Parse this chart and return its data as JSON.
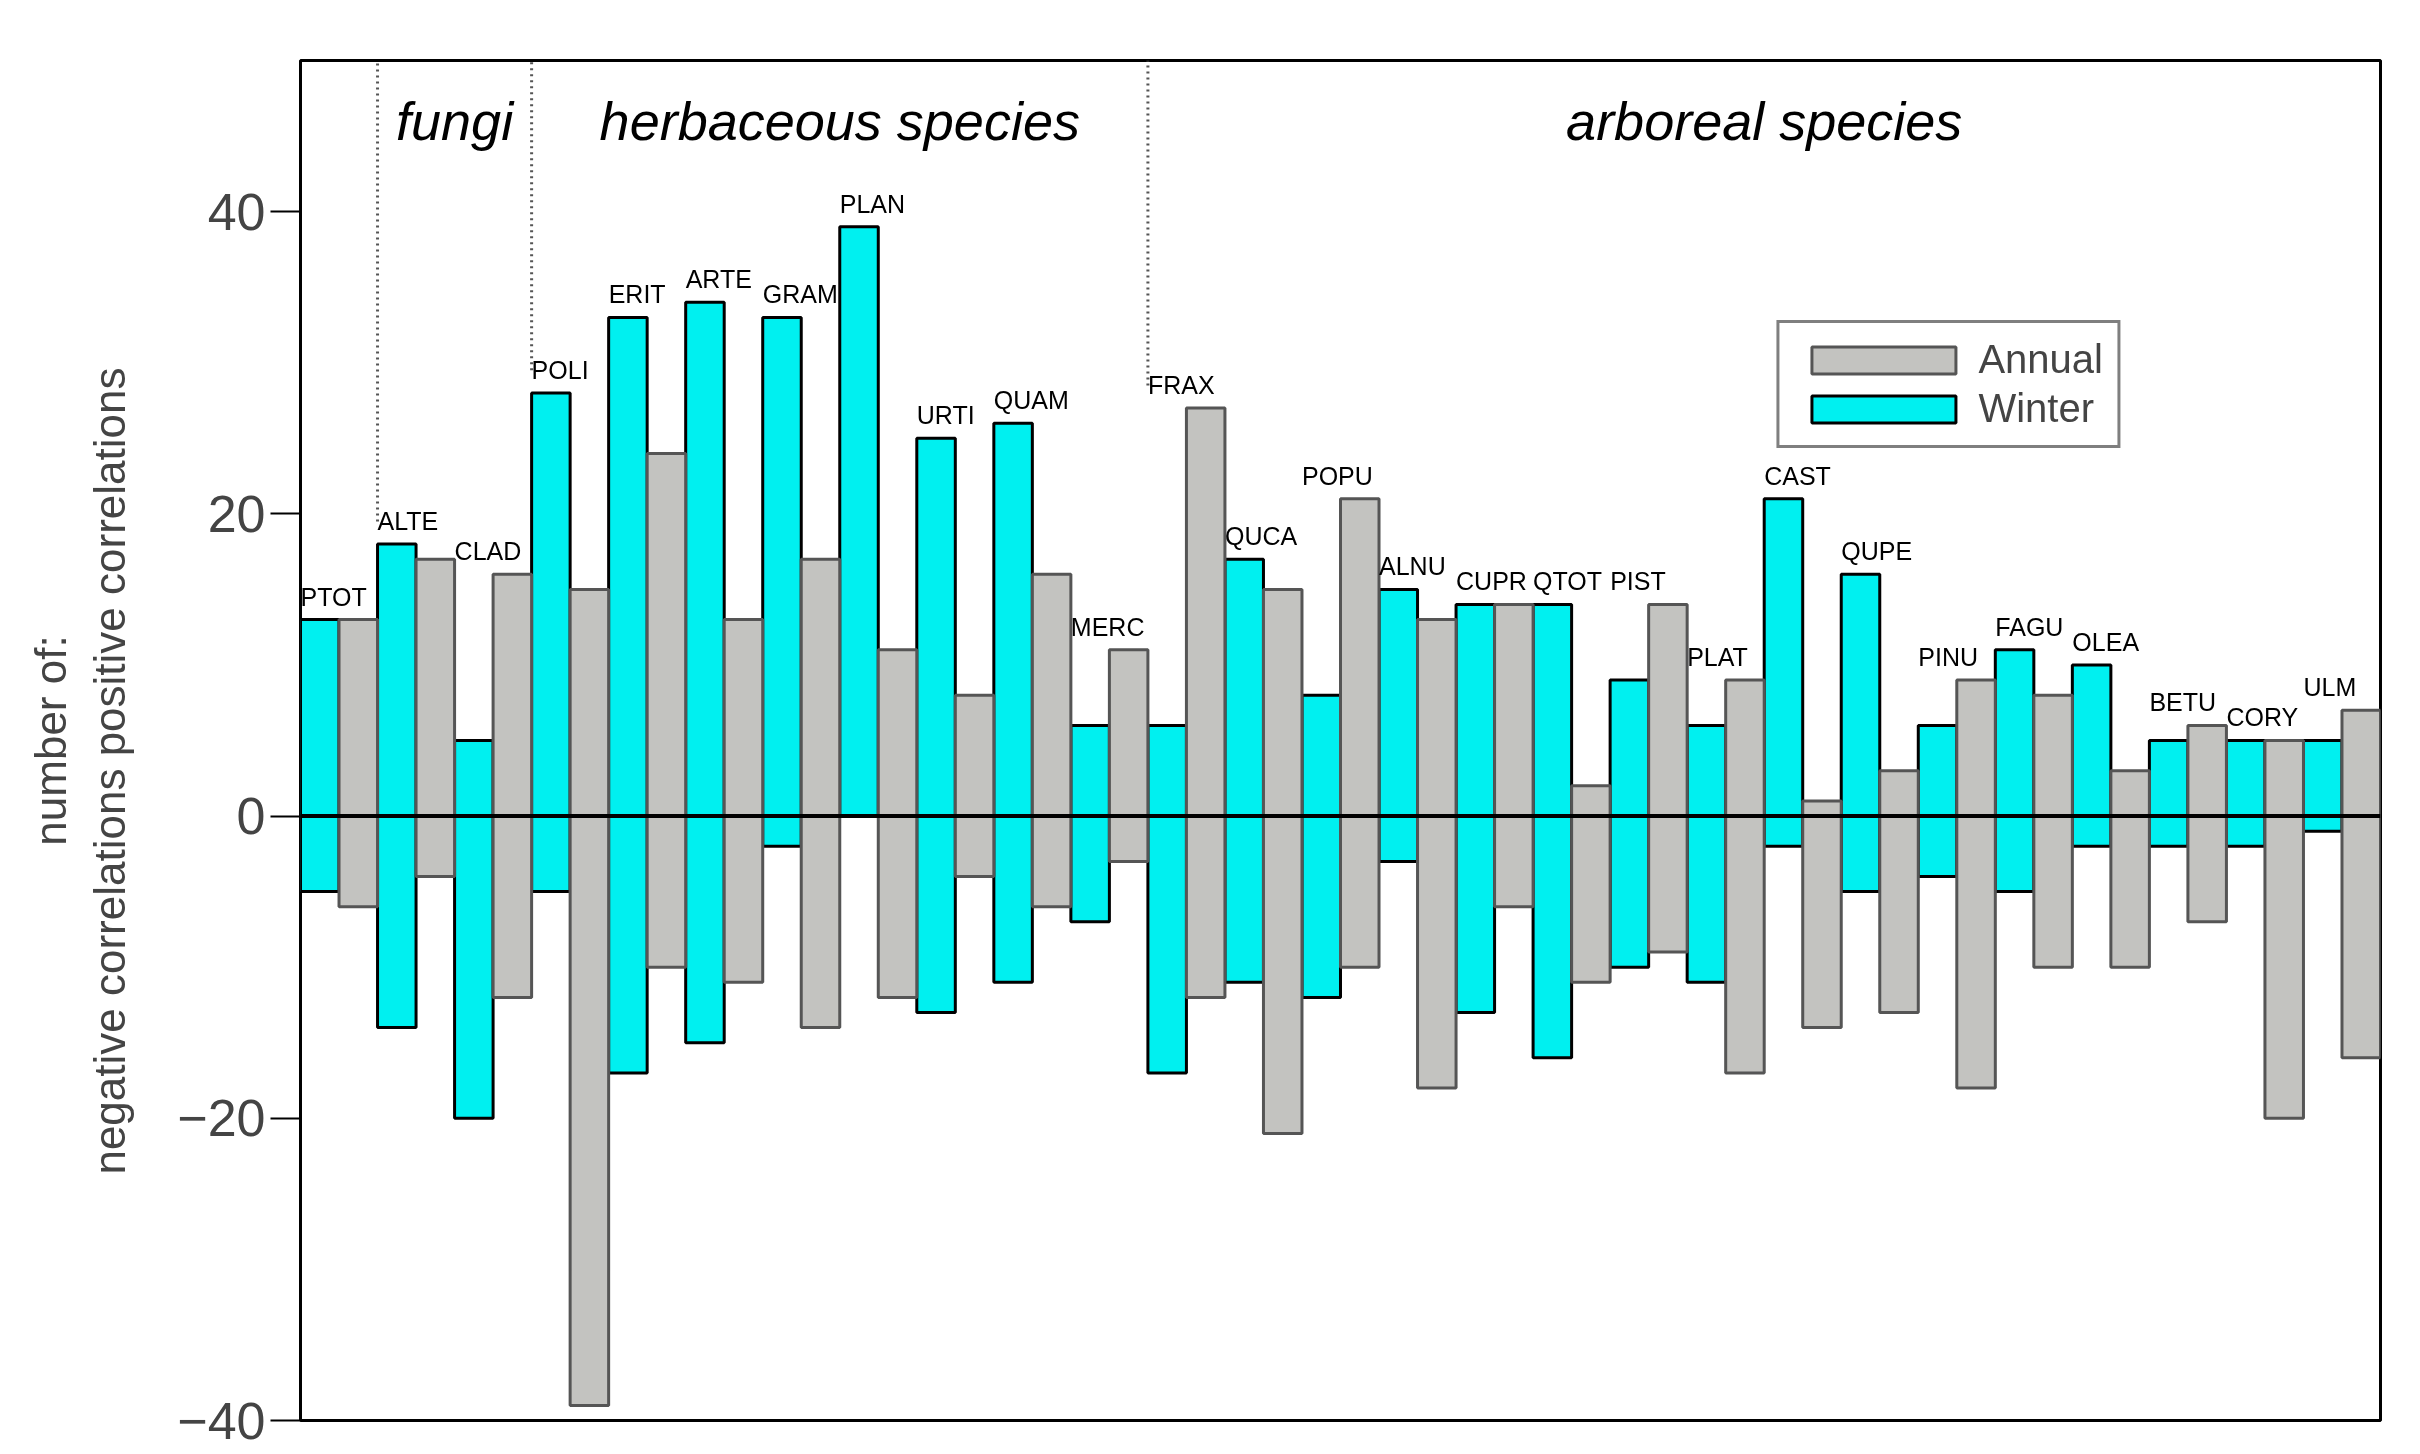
{
  "chart_data": {
    "type": "bar",
    "categories": [
      "PTOT",
      "ALTE",
      "CLAD",
      "POLI",
      "ERIT",
      "ARTE",
      "GRAM",
      "PLAN",
      "URTI",
      "QUAM",
      "MERC",
      "FRAX",
      "QUCA",
      "POPU",
      "ALNU",
      "CUPR",
      "QTOT",
      "PIST",
      "PLAT",
      "CAST",
      "QUPE",
      "PINU",
      "FAGU",
      "OLEA",
      "BETU",
      "CORY",
      "ULM"
    ],
    "ylabel": "number of:\nnegative correlations      positive correlations",
    "ylim": [
      -40,
      50
    ],
    "yticks": [
      -40,
      -20,
      0,
      20,
      40
    ],
    "tick_labels": "y",
    "grid": false,
    "legend": "top right",
    "series": [
      {
        "name": "Winter",
        "color": "#00f0f0",
        "base": [
          -5,
          -14,
          -20,
          -5,
          -17,
          -15,
          -2,
          0,
          -13,
          -11,
          -7,
          -17,
          -11,
          -12,
          -3,
          -13,
          -16,
          -10,
          -11,
          -2,
          -5,
          -4,
          -5,
          -2,
          -2,
          -2,
          -1
        ],
        "values": [
          18,
          32,
          25,
          33,
          50,
          49,
          35,
          39,
          38,
          37,
          13,
          23,
          28,
          20,
          18,
          27,
          30,
          19,
          17,
          23,
          21,
          10,
          16,
          12,
          7,
          7,
          6
        ]
      },
      {
        "name": "Annual",
        "color": "#c3c3c0",
        "base": [
          -6,
          -4,
          -12,
          -39,
          -10,
          -11,
          -14,
          -12,
          -4,
          -6,
          -3,
          -12,
          -21,
          -10,
          -18,
          -6,
          -11,
          -9,
          -17,
          -14,
          -13,
          -18,
          -10,
          -10,
          -7,
          -20,
          -16
        ],
        "values": [
          19,
          21,
          28,
          54,
          34,
          24,
          31,
          23,
          12,
          22,
          14,
          39,
          36,
          31,
          31,
          20,
          13,
          23,
          26,
          15,
          16,
          27,
          18,
          13,
          13,
          25,
          23
        ]
      }
    ],
    "ref_lines": [
      {
        "axis": "y",
        "value": 0,
        "color": "#000000",
        "line_style": "solid"
      },
      {
        "axis": "x",
        "value": "ALTE",
        "color": "#555555",
        "line_style": "dotted"
      },
      {
        "axis": "x",
        "value": "POLI",
        "color": "#555555",
        "line_style": "dotted"
      },
      {
        "axis": "x",
        "value": "FRAX",
        "color": "#555555",
        "line_style": "dotted"
      }
    ],
    "annotations": [
      "fungi",
      "herbaceous species",
      "arboreal species"
    ]
  }
}
